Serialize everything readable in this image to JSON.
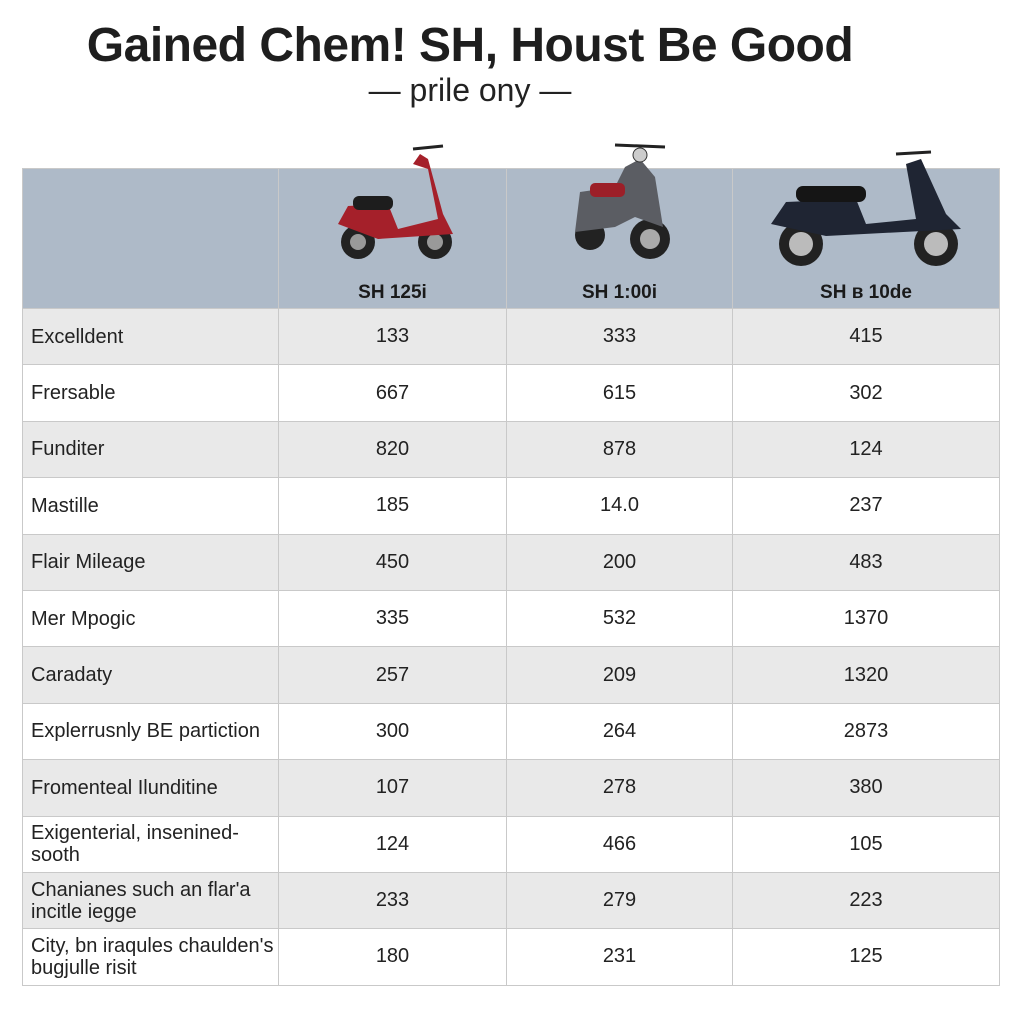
{
  "header": {
    "title": "Gained Chem! SH, Houst Be Good",
    "subtitle": "— prile ony —"
  },
  "table": {
    "columns": [
      "SH 125i",
      "SH 1:00i",
      "SH в 10de"
    ],
    "rows": [
      {
        "label": "Excelldent",
        "values": [
          "133",
          "333",
          "415"
        ]
      },
      {
        "label": "Frersable",
        "values": [
          "667",
          "615",
          "302"
        ]
      },
      {
        "label": "Funditer",
        "values": [
          "820",
          "878",
          "124"
        ]
      },
      {
        "label": "Mastille",
        "values": [
          "185",
          "14.0",
          "237"
        ]
      },
      {
        "label": "Flair Mileage",
        "values": [
          "450",
          "200",
          "483"
        ]
      },
      {
        "label": "Mer Mpogic",
        "values": [
          "335",
          "532",
          "1370"
        ]
      },
      {
        "label": "Caradaty",
        "values": [
          "257",
          "209",
          "1320"
        ]
      },
      {
        "label": "Explerrusnly BE partiction",
        "values": [
          "300",
          "264",
          "2873"
        ]
      },
      {
        "label": "Fromenteal Ilunditine",
        "values": [
          "107",
          "278",
          "380"
        ]
      },
      {
        "label": "Exigenterial, insenined-sooth",
        "values": [
          "124",
          "466",
          "105"
        ]
      },
      {
        "label": "Chanianes such an flar'a incitle iegge",
        "values": [
          "233",
          "279",
          "223"
        ]
      },
      {
        "label": "City, bn iraqules chaulden's bugjulle risit",
        "values": [
          "180",
          "231",
          "125"
        ]
      }
    ]
  }
}
